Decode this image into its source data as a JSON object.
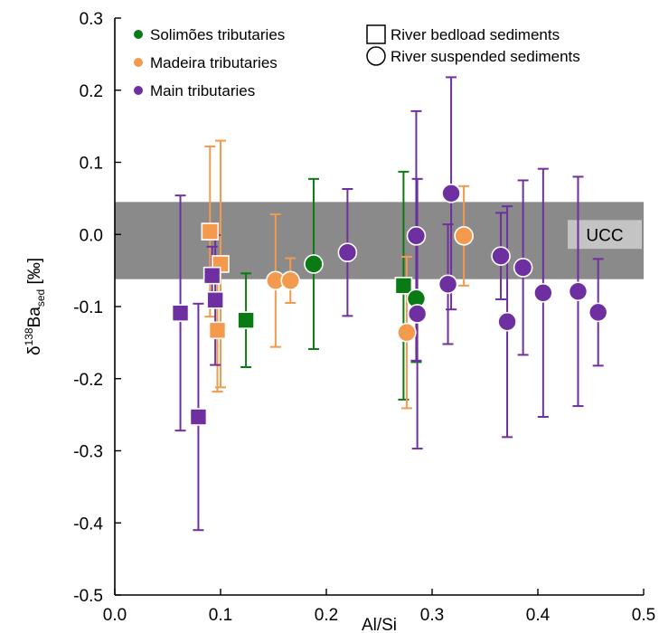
{
  "chart_data": {
    "type": "scatter",
    "xlabel": "Al/Si",
    "ylabel": {
      "base": "δ",
      "sup": "138",
      "main": "Ba",
      "sub": "sed",
      "unit": " [‰]"
    },
    "xlim": [
      0.0,
      0.5
    ],
    "ylim": [
      -0.5,
      0.3
    ],
    "x_ticks": [
      "0.0",
      "0.1",
      "0.2",
      "0.3",
      "0.4",
      "0.5"
    ],
    "y_ticks": [
      "0.3",
      "0.2",
      "0.1",
      "0.0",
      "-0.1",
      "-0.2",
      "-0.3",
      "-0.4",
      "-0.5"
    ],
    "grid": false,
    "legend_position": "top",
    "band": {
      "label": "UCC",
      "y_min": -0.062,
      "y_max": 0.045,
      "color": "#8a8a8a",
      "label_bg": "#c4c4c4"
    },
    "series": [
      {
        "name": "Solimões tributaries",
        "color": "#0a7a14",
        "points": [
          {
            "x": 0.124,
            "y": -0.119,
            "err": 0.065,
            "marker": "square"
          },
          {
            "x": 0.273,
            "y": -0.071,
            "err": 0.158,
            "marker": "square"
          },
          {
            "x": 0.188,
            "y": -0.041,
            "err": 0.118,
            "marker": "circle"
          },
          {
            "x": 0.285,
            "y": -0.089,
            "err": 0.088,
            "marker": "circle"
          }
        ]
      },
      {
        "name": "Madeira tributaries",
        "color": "#f39a4f",
        "points": [
          {
            "x": 0.09,
            "y": 0.004,
            "err": 0.118,
            "marker": "square"
          },
          {
            "x": 0.1,
            "y": -0.041,
            "err": 0.171,
            "marker": "square"
          },
          {
            "x": 0.097,
            "y": -0.133,
            "err": 0.085,
            "marker": "square"
          },
          {
            "x": 0.152,
            "y": -0.064,
            "err": 0.092,
            "marker": "circle"
          },
          {
            "x": 0.166,
            "y": -0.064,
            "err": 0.031,
            "marker": "circle"
          },
          {
            "x": 0.276,
            "y": -0.136,
            "err": 0.105,
            "marker": "circle"
          },
          {
            "x": 0.33,
            "y": -0.002,
            "err": 0.069,
            "marker": "circle"
          }
        ]
      },
      {
        "name": "Main tributaries",
        "color": "#6e2fa0",
        "points": [
          {
            "x": 0.062,
            "y": -0.109,
            "err": 0.163,
            "marker": "square"
          },
          {
            "x": 0.079,
            "y": -0.253,
            "err": 0.157,
            "marker": "square"
          },
          {
            "x": 0.092,
            "y": -0.057,
            "err": 0.04,
            "marker": "square"
          },
          {
            "x": 0.095,
            "y": -0.091,
            "err": 0.09,
            "marker": "square"
          },
          {
            "x": 0.22,
            "y": -0.025,
            "err": 0.088,
            "marker": "circle"
          },
          {
            "x": 0.285,
            "y": -0.002,
            "err": 0.173,
            "marker": "circle"
          },
          {
            "x": 0.286,
            "y": -0.11,
            "err": 0.187,
            "marker": "circle"
          },
          {
            "x": 0.315,
            "y": -0.069,
            "err": 0.083,
            "marker": "circle"
          },
          {
            "x": 0.318,
            "y": 0.057,
            "err": 0.161,
            "marker": "circle"
          },
          {
            "x": 0.365,
            "y": -0.03,
            "err": 0.06,
            "marker": "circle"
          },
          {
            "x": 0.371,
            "y": -0.121,
            "err": 0.16,
            "marker": "circle"
          },
          {
            "x": 0.386,
            "y": -0.046,
            "err": 0.121,
            "marker": "circle"
          },
          {
            "x": 0.405,
            "y": -0.081,
            "err": 0.172,
            "marker": "circle"
          },
          {
            "x": 0.438,
            "y": -0.079,
            "err": 0.159,
            "marker": "circle"
          },
          {
            "x": 0.457,
            "y": -0.108,
            "err": 0.074,
            "marker": "circle"
          }
        ]
      }
    ],
    "marker_legend": [
      {
        "marker": "square",
        "label": "River bedload sediments"
      },
      {
        "marker": "circle",
        "label": "River suspended sediments"
      }
    ]
  }
}
